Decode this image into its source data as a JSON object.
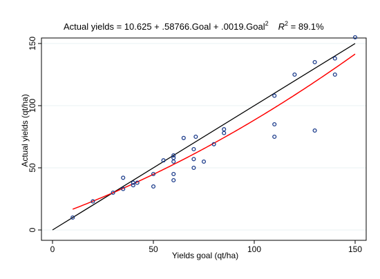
{
  "chart_data": {
    "type": "scatter",
    "title": {
      "equation": "Actual yields = 10.625 + .58766.Goal + .0019.Goal",
      "equation_sup": "2",
      "r2_label": "R",
      "r2_sup": "2",
      "r2_value": " = 89.1%"
    },
    "xlabel": "Yields goal (qt/ha)",
    "ylabel": "Actual yields (qt/ha)",
    "xlim": [
      0,
      150
    ],
    "ylim": [
      0,
      150
    ],
    "xticks": [
      0,
      50,
      100,
      150
    ],
    "yticks": [
      0,
      50,
      100,
      150
    ],
    "grid": "horizontal",
    "colors": {
      "points": "#1a3a8a",
      "reference_line": "#000000",
      "fit_line": "#ff0000"
    },
    "points": [
      [
        10,
        10
      ],
      [
        20,
        23
      ],
      [
        30,
        30
      ],
      [
        35,
        33
      ],
      [
        35,
        42
      ],
      [
        40,
        36
      ],
      [
        40,
        38
      ],
      [
        42,
        38
      ],
      [
        50,
        35
      ],
      [
        50,
        45
      ],
      [
        55,
        56
      ],
      [
        60,
        40
      ],
      [
        60,
        45
      ],
      [
        60,
        55
      ],
      [
        60,
        58
      ],
      [
        60,
        60
      ],
      [
        65,
        74
      ],
      [
        70,
        50
      ],
      [
        70,
        57
      ],
      [
        70,
        65
      ],
      [
        71,
        75
      ],
      [
        75,
        55
      ],
      [
        80,
        69
      ],
      [
        85,
        78
      ],
      [
        85,
        81
      ],
      [
        110,
        75
      ],
      [
        110,
        85
      ],
      [
        110,
        108
      ],
      [
        120,
        125
      ],
      [
        130,
        80
      ],
      [
        130,
        135
      ],
      [
        140,
        125
      ],
      [
        140,
        138
      ],
      [
        150,
        155
      ]
    ],
    "reference_line": {
      "x": [
        0,
        150
      ],
      "y": [
        0,
        150
      ]
    },
    "fit": {
      "intercept": 10.625,
      "linear": 0.58766,
      "quadratic": 0.0019,
      "x_range": [
        10,
        150
      ]
    }
  }
}
